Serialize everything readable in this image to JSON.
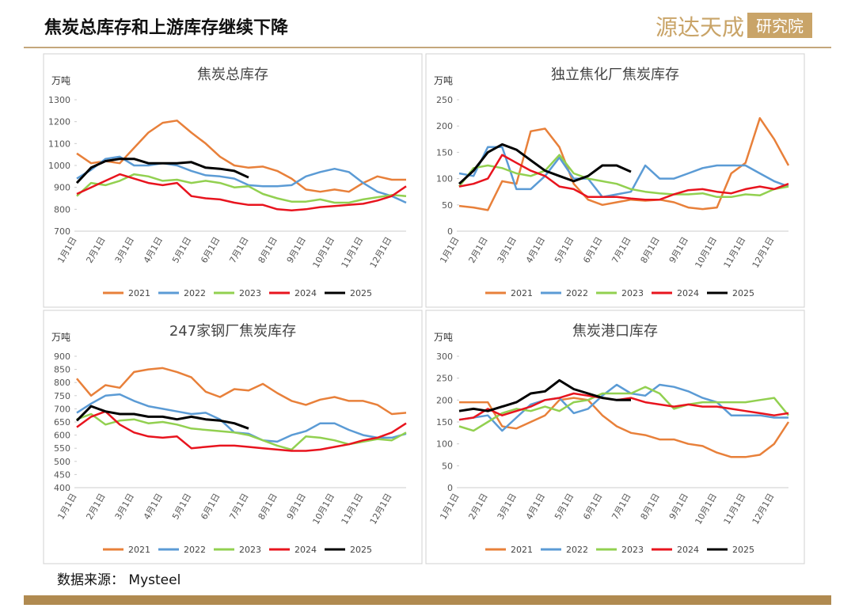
{
  "header": {
    "title": "焦炭总库存和上游库存继续下降",
    "logo": "源达天成",
    "logo_box": "研究院"
  },
  "footer": {
    "source": "数据来源：  Mysteel"
  },
  "chart_data": [
    {
      "type": "line",
      "title": "焦炭总库存",
      "y_label": "万吨",
      "categories": [
        "1月1日",
        null,
        "2月1日",
        null,
        "3月1日",
        null,
        "4月1日",
        null,
        "5月1日",
        null,
        "6月1日",
        null,
        "7月1日",
        null,
        "8月1日",
        null,
        "9月1日",
        null,
        "10月1日",
        null,
        "11月1日",
        null,
        "12月1日",
        null
      ],
      "ylim": [
        700,
        1300
      ],
      "yticks": [
        700,
        800,
        900,
        1000,
        1100,
        1200,
        1300
      ],
      "series": [
        {
          "name": "2021",
          "color": "#e8803a",
          "values": [
            1055,
            1010,
            1020,
            1010,
            1080,
            1150,
            1195,
            1205,
            1150,
            1100,
            1040,
            1000,
            990,
            995,
            975,
            940,
            890,
            880,
            890,
            880,
            920,
            950,
            935,
            935
          ]
        },
        {
          "name": "2022",
          "color": "#5b9bd5",
          "values": [
            940,
            980,
            1030,
            1040,
            1000,
            1000,
            1010,
            1000,
            975,
            955,
            950,
            940,
            910,
            905,
            905,
            910,
            950,
            970,
            985,
            970,
            920,
            880,
            860,
            830
          ]
        },
        {
          "name": "2023",
          "color": "#92d050",
          "values": [
            860,
            920,
            910,
            930,
            960,
            950,
            930,
            935,
            920,
            930,
            920,
            900,
            905,
            870,
            850,
            835,
            835,
            845,
            830,
            830,
            845,
            855,
            865,
            860
          ]
        },
        {
          "name": "2024",
          "color": "#e8141e",
          "values": [
            870,
            900,
            930,
            960,
            940,
            920,
            910,
            920,
            860,
            850,
            845,
            830,
            820,
            820,
            800,
            795,
            800,
            810,
            815,
            820,
            825,
            840,
            860,
            905
          ]
        },
        {
          "name": "2025",
          "color": "#000000",
          "values": [
            920,
            990,
            1020,
            1030,
            1030,
            1010,
            1010,
            1010,
            1015,
            990,
            985,
            975,
            945,
            null,
            null,
            null,
            null,
            null,
            null,
            null,
            null,
            null,
            null,
            null
          ]
        }
      ]
    },
    {
      "type": "line",
      "title": "独立焦化厂焦炭库存",
      "y_label": "万吨",
      "categories": [
        "1月1日",
        null,
        "2月1日",
        null,
        "3月1日",
        null,
        "4月1日",
        null,
        "5月1日",
        null,
        "6月1日",
        null,
        "7月1日",
        null,
        "8月1日",
        null,
        "9月1日",
        null,
        "10月1日",
        null,
        "11月1日",
        null,
        "12月1日",
        null
      ],
      "ylim": [
        0,
        250
      ],
      "yticks": [
        0,
        50,
        100,
        150,
        200,
        250
      ],
      "series": [
        {
          "name": "2021",
          "color": "#e8803a",
          "values": [
            48,
            45,
            40,
            95,
            90,
            190,
            195,
            160,
            90,
            60,
            50,
            55,
            60,
            58,
            60,
            55,
            45,
            42,
            45,
            110,
            130,
            215,
            175,
            125
          ]
        },
        {
          "name": "2022",
          "color": "#5b9bd5",
          "values": [
            110,
            105,
            160,
            160,
            80,
            80,
            105,
            140,
            100,
            100,
            65,
            70,
            75,
            125,
            100,
            100,
            110,
            120,
            125,
            125,
            125,
            110,
            95,
            85
          ]
        },
        {
          "name": "2023",
          "color": "#92d050",
          "values": [
            85,
            120,
            125,
            120,
            110,
            105,
            115,
            145,
            110,
            100,
            95,
            90,
            80,
            75,
            72,
            70,
            70,
            72,
            65,
            65,
            70,
            68,
            80,
            85
          ]
        },
        {
          "name": "2024",
          "color": "#e8141e",
          "values": [
            85,
            90,
            100,
            145,
            130,
            115,
            105,
            85,
            80,
            65,
            65,
            65,
            62,
            60,
            60,
            70,
            78,
            80,
            75,
            72,
            80,
            85,
            80,
            90
          ]
        },
        {
          "name": "2025",
          "color": "#000000",
          "values": [
            90,
            115,
            150,
            165,
            155,
            135,
            115,
            105,
            95,
            105,
            125,
            125,
            113,
            null,
            null,
            null,
            null,
            null,
            null,
            null,
            null,
            null,
            null,
            null
          ]
        }
      ]
    },
    {
      "type": "line",
      "title": "247家钢厂焦炭库存",
      "y_label": "万吨",
      "categories": [
        "1月1日",
        null,
        "2月1日",
        null,
        "3月1日",
        null,
        "4月1日",
        null,
        "5月1日",
        null,
        "6月1日",
        null,
        "7月1日",
        null,
        "8月1日",
        null,
        "9月1日",
        null,
        "10月1日",
        null,
        "11月1日",
        null,
        "12月1日",
        null
      ],
      "ylim": [
        400,
        900
      ],
      "yticks": [
        400,
        450,
        500,
        550,
        600,
        650,
        700,
        750,
        800,
        850,
        900
      ],
      "series": [
        {
          "name": "2021",
          "color": "#e8803a",
          "values": [
            815,
            750,
            790,
            780,
            840,
            850,
            855,
            840,
            820,
            765,
            745,
            775,
            770,
            795,
            760,
            730,
            715,
            735,
            745,
            730,
            730,
            715,
            680,
            685
          ]
        },
        {
          "name": "2022",
          "color": "#5b9bd5",
          "values": [
            685,
            720,
            750,
            755,
            730,
            710,
            700,
            690,
            680,
            685,
            660,
            610,
            605,
            580,
            575,
            600,
            615,
            645,
            645,
            620,
            600,
            590,
            590,
            605
          ]
        },
        {
          "name": "2023",
          "color": "#92d050",
          "values": [
            660,
            680,
            640,
            655,
            660,
            645,
            650,
            640,
            625,
            620,
            615,
            610,
            600,
            580,
            560,
            545,
            595,
            590,
            580,
            565,
            575,
            585,
            580,
            610
          ]
        },
        {
          "name": "2024",
          "color": "#e8141e",
          "values": [
            630,
            670,
            690,
            640,
            610,
            595,
            590,
            595,
            550,
            555,
            560,
            560,
            555,
            550,
            545,
            540,
            540,
            545,
            555,
            565,
            580,
            590,
            610,
            645
          ]
        },
        {
          "name": "2025",
          "color": "#000000",
          "values": [
            655,
            710,
            690,
            680,
            680,
            670,
            670,
            660,
            670,
            660,
            655,
            645,
            625,
            null,
            null,
            null,
            null,
            null,
            null,
            null,
            null,
            null,
            null,
            null
          ]
        }
      ]
    },
    {
      "type": "line",
      "title": "焦炭港口库存",
      "y_label": "万吨",
      "categories": [
        "1月1日",
        null,
        "2月1日",
        null,
        "3月1日",
        null,
        "4月1日",
        null,
        "5月1日",
        null,
        "6月1日",
        null,
        "7月1日",
        null,
        "8月1日",
        null,
        "9月1日",
        null,
        "10月1日",
        null,
        "11月1日",
        null,
        "12月1日",
        null
      ],
      "ylim": [
        0,
        300
      ],
      "yticks": [
        0,
        50,
        100,
        150,
        200,
        250,
        300
      ],
      "series": [
        {
          "name": "2021",
          "color": "#e8803a",
          "values": [
            195,
            195,
            195,
            140,
            135,
            150,
            165,
            200,
            205,
            200,
            165,
            140,
            125,
            120,
            110,
            110,
            100,
            95,
            80,
            70,
            70,
            75,
            100,
            150
          ]
        },
        {
          "name": "2022",
          "color": "#5b9bd5",
          "values": [
            155,
            160,
            165,
            130,
            160,
            190,
            200,
            205,
            170,
            180,
            210,
            235,
            215,
            210,
            235,
            230,
            220,
            205,
            195,
            165,
            165,
            165,
            160,
            160
          ]
        },
        {
          "name": "2023",
          "color": "#92d050",
          "values": [
            140,
            130,
            150,
            170,
            180,
            175,
            185,
            175,
            195,
            200,
            215,
            215,
            215,
            230,
            215,
            180,
            190,
            195,
            195,
            195,
            195,
            200,
            205,
            165
          ]
        },
        {
          "name": "2024",
          "color": "#e8141e",
          "values": [
            155,
            160,
            180,
            165,
            175,
            185,
            200,
            205,
            215,
            210,
            205,
            200,
            205,
            195,
            190,
            185,
            190,
            185,
            185,
            180,
            175,
            170,
            165,
            170
          ]
        },
        {
          "name": "2025",
          "color": "#000000",
          "values": [
            175,
            180,
            175,
            185,
            195,
            215,
            220,
            245,
            225,
            215,
            205,
            200,
            200,
            null,
            null,
            null,
            null,
            null,
            null,
            null,
            null,
            null,
            null,
            null
          ]
        }
      ]
    }
  ]
}
